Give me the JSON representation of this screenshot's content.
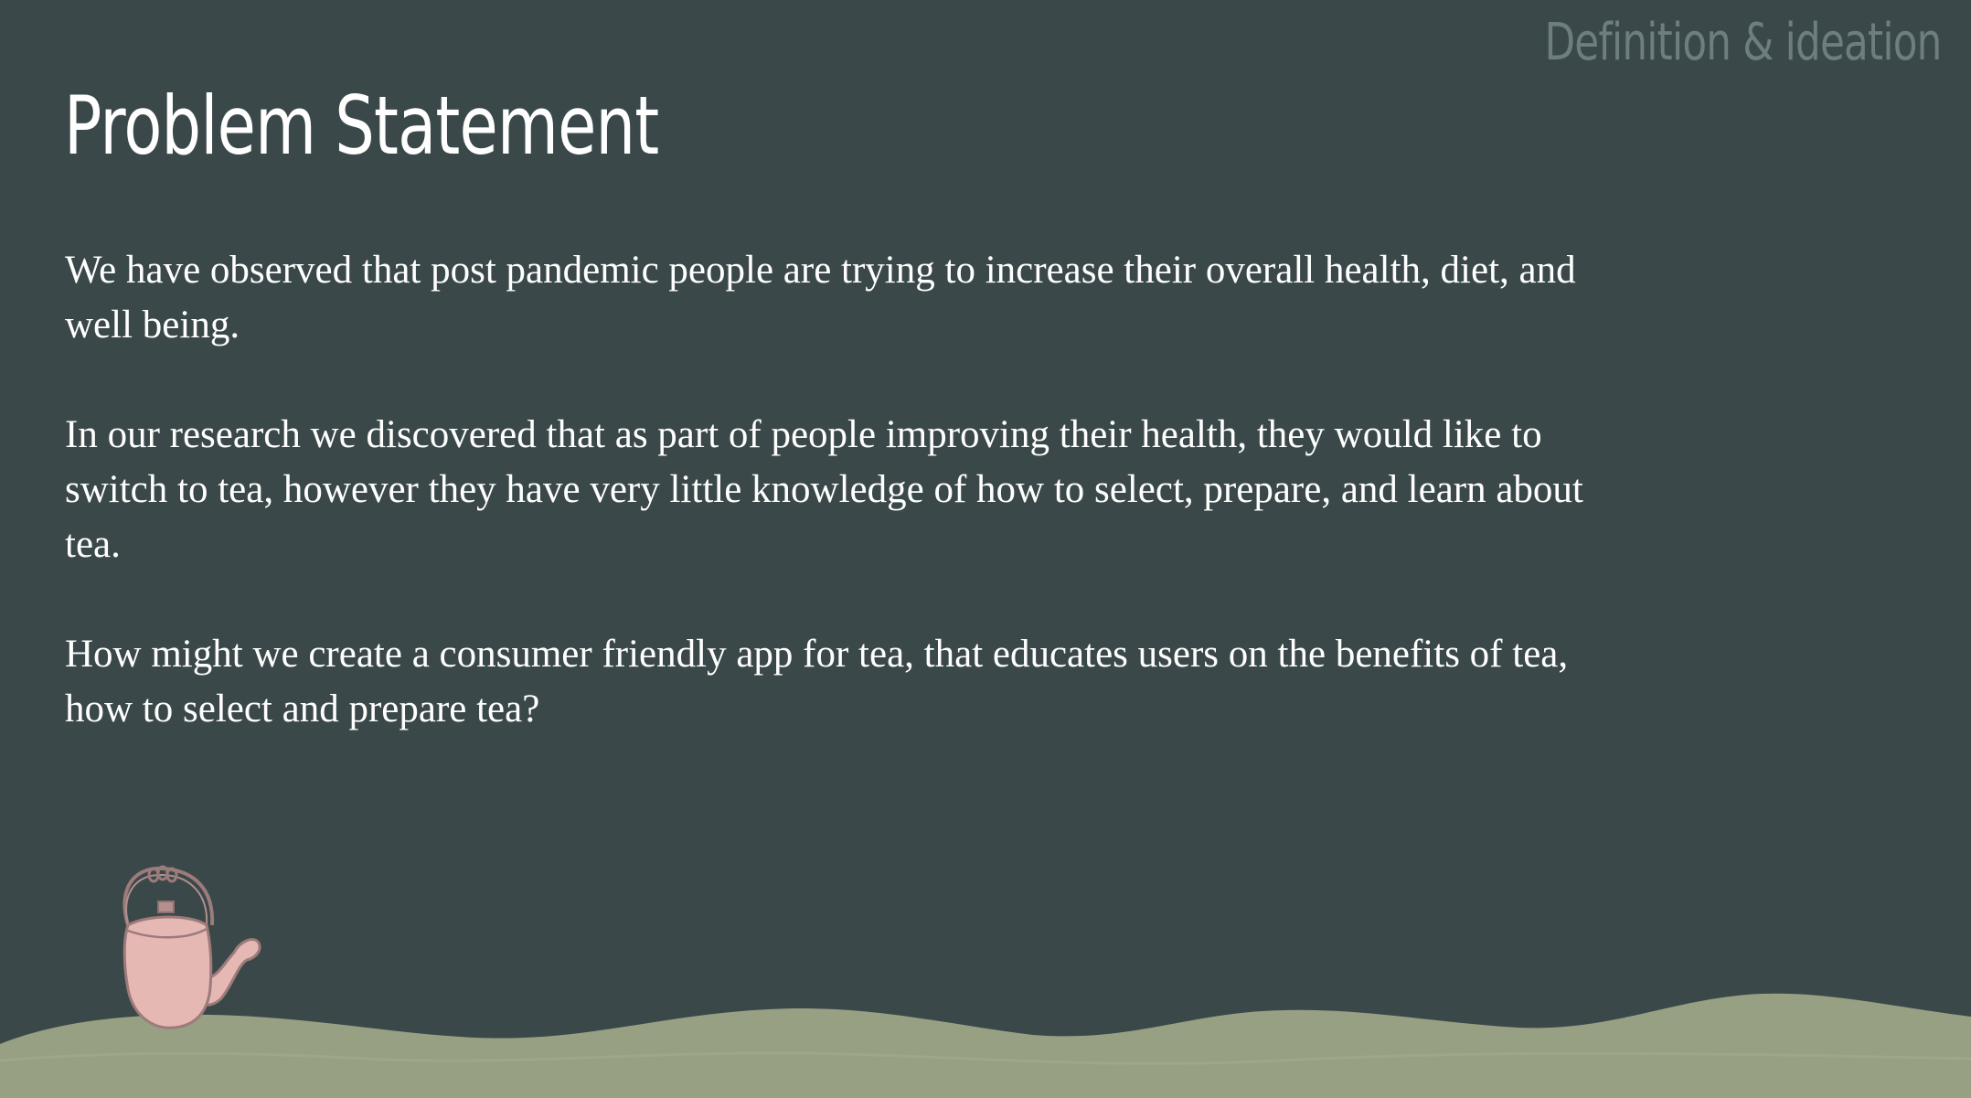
{
  "header": {
    "section_label": "Definition & ideation",
    "title": "Problem Statement"
  },
  "content": {
    "paragraphs": [
      "We have observed that post pandemic people are trying to increase their overall health, diet, and well being.",
      "In our research we discovered that as part of people improving their health, they would like to switch to tea, however they have very little knowledge of how to select, prepare, and learn about tea.",
      "How might we create a consumer friendly app for tea, that educates users on the benefits of tea, how to select and prepare tea?"
    ]
  },
  "colors": {
    "background": "#3b4849",
    "section_label": "#6d7e7f",
    "text": "#ffffff",
    "hills": "#97a083",
    "teapot": "#e6b8b4"
  },
  "icons": {
    "teapot": "teapot-icon"
  }
}
